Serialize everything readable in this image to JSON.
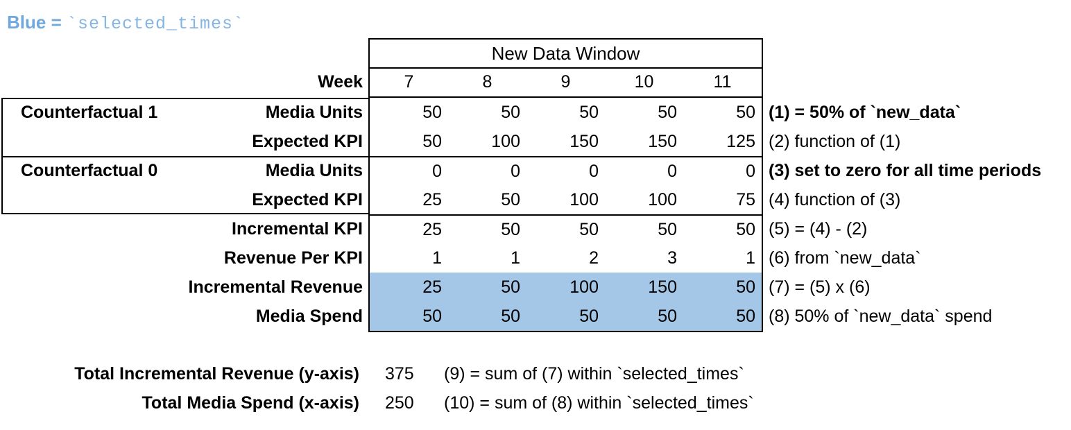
{
  "colors": {
    "accent_blue": "#6FA8DC",
    "accent_blue_light": "#85B5E3",
    "highlight": "#A4C7E7"
  },
  "legend": {
    "prefix": "Blue = ",
    "code": "`selected_times`"
  },
  "table": {
    "header": "New Data Window",
    "week_label": "Week",
    "weeks": [
      "7",
      "8",
      "9",
      "10",
      "11"
    ],
    "rows": [
      {
        "group": "Counterfactual 1",
        "label": "Media Units",
        "values": [
          "50",
          "50",
          "50",
          "50",
          "50"
        ],
        "note": "(1) = 50% of `new_data`",
        "note_bold": true,
        "highlight": false
      },
      {
        "label": "Expected KPI",
        "values": [
          "50",
          "100",
          "150",
          "150",
          "125"
        ],
        "note": "(2) function of (1)",
        "note_bold": false,
        "highlight": false
      },
      {
        "group": "Counterfactual 0",
        "label": "Media Units",
        "values": [
          "0",
          "0",
          "0",
          "0",
          "0"
        ],
        "note": "(3) set to zero for all time periods",
        "note_bold": true,
        "highlight": false
      },
      {
        "label": "Expected KPI",
        "values": [
          "25",
          "50",
          "100",
          "100",
          "75"
        ],
        "note": "(4) function of (3)",
        "note_bold": false,
        "highlight": false
      },
      {
        "label": "Incremental KPI",
        "values": [
          "25",
          "50",
          "50",
          "50",
          "50"
        ],
        "note": "(5) = (4) - (2)",
        "note_bold": false,
        "highlight": false
      },
      {
        "label": "Revenue Per KPI",
        "values": [
          "1",
          "1",
          "2",
          "3",
          "1"
        ],
        "note": "(6) from `new_data`",
        "note_bold": false,
        "highlight": false
      },
      {
        "label": "Incremental Revenue",
        "values": [
          "25",
          "50",
          "100",
          "150",
          "50"
        ],
        "note": "(7) = (5) x (6)",
        "note_bold": false,
        "highlight": true
      },
      {
        "label": "Media Spend",
        "values": [
          "50",
          "50",
          "50",
          "50",
          "50"
        ],
        "note": "(8) 50% of `new_data` spend",
        "note_bold": false,
        "highlight": true
      }
    ]
  },
  "totals": [
    {
      "label": "Total Incremental Revenue (y-axis)",
      "value": "375",
      "note": "(9) = sum of (7) within `selected_times`"
    },
    {
      "label": "Total Media Spend (x-axis)",
      "value": "250",
      "note": "(10) = sum of (8) within `selected_times`"
    }
  ]
}
